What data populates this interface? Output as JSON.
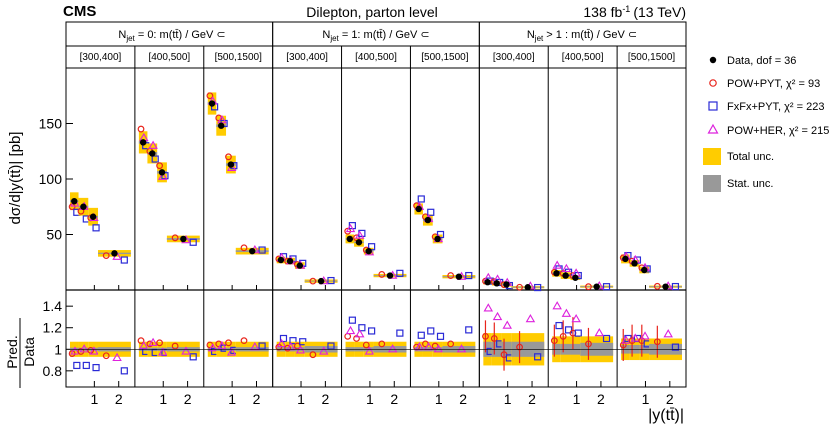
{
  "header": {
    "experiment": "CMS",
    "title": "Dilepton, parton level",
    "lumi_value": "138 fb",
    "lumi_exp": "-1",
    "lumi_energy": "(13 TeV)"
  },
  "axes": {
    "ylabel_top": "dσ/d|y(tt̄)| [pb]",
    "ylabel_bottom_num": "Pred.",
    "ylabel_bottom_den": "Data",
    "xlabel": "|y(tt̄)|"
  },
  "groups": [
    {
      "label": "N_jet = 0: m(tt̄) / GeV ⊂",
      "sub": "jet",
      "pre": "N",
      "post": " = 0: m(tt̄) / GeV ⊂"
    },
    {
      "label": "N_jet = 1: m(tt̄) / GeV ⊂",
      "sub": "jet",
      "pre": "N",
      "post": " = 1: m(tt̄) / GeV ⊂"
    },
    {
      "label": "N_jet > 1: m(tt̄) / GeV ⊂",
      "sub": "jet",
      "pre": "N",
      "post": " > 1 : m(tt̄) / GeV ⊂"
    }
  ],
  "mass_bins": [
    "[300,400]",
    "[400,500]",
    "[500,1500]"
  ],
  "legend": [
    {
      "key": "data",
      "label": "Data, dof = 36"
    },
    {
      "key": "pow",
      "label": "POW+PYT, χ² = 93"
    },
    {
      "key": "fxfx",
      "label": "FxFx+PYT, χ² = 223"
    },
    {
      "key": "her",
      "label": "POW+HER, χ² = 215"
    },
    {
      "key": "total",
      "label": "Total unc."
    },
    {
      "key": "stat",
      "label": "Stat. unc."
    }
  ],
  "colors": {
    "data": "#000000",
    "pow": "#e8241c",
    "fxfx": "#2a2ad6",
    "her": "#dd22dd",
    "total": "#ffcc00",
    "stat": "#999999"
  },
  "chart_data": {
    "type": "scatter",
    "title": "Dilepton, parton level",
    "xlabel": "|y(tt̄)|",
    "ylabel": "dσ/d|y(tt̄)| [pb]",
    "ratio_ylabel": "Pred./Data",
    "x_bin_edges": [
      0,
      0.35,
      0.75,
      1.15,
      2.5
    ],
    "x_range": [
      0,
      2.5
    ],
    "x_ticks": [
      1,
      2
    ],
    "y_range": [
      0,
      200
    ],
    "y_ticks": [
      50,
      100,
      150
    ],
    "ratio_range": [
      0.65,
      1.55
    ],
    "ratio_ticks": [
      0.8,
      1,
      1.2,
      1.4
    ],
    "panels": [
      {
        "group": 0,
        "mass": "[300,400]",
        "data": [
          80,
          75,
          66,
          33
        ],
        "total_unc": [
          8,
          8,
          8,
          3
        ],
        "stat_unc": [
          0.8,
          0.8,
          0.8,
          0.6
        ],
        "pow": [
          75,
          71,
          65,
          31
        ],
        "fxfx": [
          70,
          64,
          56,
          27
        ],
        "her": [
          78,
          75,
          65,
          30
        ],
        "ratio_pow": [
          0.96,
          0.98,
          0.99,
          0.94
        ],
        "ratio_fxfx": [
          0.85,
          0.85,
          0.83,
          0.8
        ],
        "ratio_her": [
          0.98,
          1.0,
          0.98,
          0.92
        ],
        "ratio_total": [
          0.07,
          0.07,
          0.07,
          0.07
        ],
        "ratio_stat": [
          0.015,
          0.015,
          0.015,
          0.02
        ]
      },
      {
        "group": 0,
        "mass": "[400,500]",
        "data": [
          133,
          123,
          106,
          46
        ],
        "total_unc": [
          10,
          9,
          9,
          3
        ],
        "stat_unc": [
          1.2,
          1.2,
          1.2,
          0.8
        ],
        "pow": [
          145,
          125,
          112,
          47
        ],
        "fxfx": [
          130,
          118,
          103,
          43
        ],
        "her": [
          137,
          130,
          102,
          45
        ],
        "ratio_pow": [
          1.08,
          1.05,
          1.06,
          1.03
        ],
        "ratio_fxfx": [
          0.98,
          0.97,
          0.97,
          0.93
        ],
        "ratio_her": [
          1.03,
          1.06,
          0.97,
          0.98
        ],
        "ratio_total": [
          0.07,
          0.07,
          0.07,
          0.07
        ],
        "ratio_stat": [
          0.015,
          0.015,
          0.015,
          0.02
        ]
      },
      {
        "group": 0,
        "mass": "[500,1500]",
        "data": [
          168,
          148,
          113,
          35
        ],
        "total_unc": [
          10,
          9,
          8,
          3
        ],
        "stat_unc": [
          1.2,
          1.2,
          1.2,
          0.8
        ],
        "pow": [
          175,
          155,
          120,
          38
        ],
        "fxfx": [
          165,
          150,
          112,
          36
        ],
        "her": [
          170,
          153,
          110,
          36
        ],
        "ratio_pow": [
          1.04,
          1.05,
          1.06,
          1.08
        ],
        "ratio_fxfx": [
          0.98,
          1.01,
          0.99,
          1.03
        ],
        "ratio_her": [
          1.01,
          1.03,
          0.97,
          1.02
        ],
        "ratio_total": [
          0.07,
          0.07,
          0.07,
          0.07
        ],
        "ratio_stat": [
          0.015,
          0.015,
          0.015,
          0.02
        ]
      },
      {
        "group": 1,
        "mass": "[300,400]",
        "data": [
          27,
          26,
          22,
          8
        ],
        "total_unc": [
          3,
          3,
          3,
          1.5
        ],
        "stat_unc": [
          0.5,
          0.5,
          0.5,
          0.4
        ],
        "pow": [
          28,
          26,
          23,
          8
        ],
        "fxfx": [
          30,
          28,
          24,
          8.5
        ],
        "her": [
          29,
          26,
          22,
          8
        ],
        "ratio_pow": [
          1.02,
          1.01,
          1.03,
          0.95
        ],
        "ratio_fxfx": [
          1.1,
          1.08,
          1.07,
          1.03
        ],
        "ratio_her": [
          1.05,
          1.02,
          0.99,
          0.98
        ],
        "ratio_total": [
          0.07,
          0.07,
          0.07,
          0.07
        ],
        "ratio_stat": [
          0.02,
          0.02,
          0.02,
          0.03
        ]
      },
      {
        "group": 1,
        "mass": "[400,500]",
        "data": [
          46,
          43,
          35,
          13
        ],
        "total_unc": [
          4,
          4,
          3,
          1.5
        ],
        "stat_unc": [
          0.6,
          0.6,
          0.6,
          0.4
        ],
        "pow": [
          53,
          47,
          36,
          14
        ],
        "fxfx": [
          58,
          51,
          39,
          15
        ],
        "her": [
          55,
          49,
          34,
          13
        ],
        "ratio_pow": [
          1.12,
          1.1,
          1.04,
          1.05
        ],
        "ratio_fxfx": [
          1.27,
          1.2,
          1.17,
          1.15
        ],
        "ratio_her": [
          1.17,
          1.14,
          0.98,
          1.0
        ],
        "ratio_total": [
          0.07,
          0.07,
          0.07,
          0.07
        ],
        "ratio_stat": [
          0.02,
          0.02,
          0.02,
          0.03
        ]
      },
      {
        "group": 1,
        "mass": "[500,1500]",
        "data": [
          73,
          63,
          46,
          12
        ],
        "total_unc": [
          5,
          5,
          4,
          1.5
        ],
        "stat_unc": [
          0.8,
          0.8,
          0.8,
          0.5
        ],
        "pow": [
          76,
          66,
          48,
          13
        ],
        "fxfx": [
          82,
          70,
          50,
          13
        ],
        "her": [
          75,
          64,
          46,
          12
        ],
        "ratio_pow": [
          1.02,
          1.05,
          1.03,
          1.05
        ],
        "ratio_fxfx": [
          1.13,
          1.17,
          1.12,
          1.18
        ],
        "ratio_her": [
          1.02,
          1.02,
          1.0,
          1.0
        ],
        "ratio_total": [
          0.07,
          0.07,
          0.07,
          0.07
        ],
        "ratio_stat": [
          0.02,
          0.02,
          0.02,
          0.03
        ]
      },
      {
        "group": 2,
        "mass": "[300,400]",
        "data": [
          7,
          6,
          5,
          2.5
        ],
        "total_unc": [
          2,
          2,
          2,
          1
        ],
        "stat_unc": [
          0.7,
          0.7,
          0.7,
          0.5
        ],
        "pow": [
          8,
          7.5,
          4.8,
          2.5
        ],
        "fxfx": [
          8,
          6.8,
          4,
          2.2
        ],
        "her": [
          11,
          9.5,
          6.5,
          3.3
        ],
        "ratio_pow": [
          1.12,
          1.1,
          0.95,
          1.02
        ],
        "ratio_fxfx": [
          0.98,
          1.05,
          0.92,
          0.93
        ],
        "ratio_her": [
          1.38,
          1.3,
          1.22,
          1.28
        ],
        "ratio_total": [
          0.15,
          0.15,
          0.15,
          0.15
        ],
        "ratio_stat": [
          0.07,
          0.07,
          0.07,
          0.07
        ]
      },
      {
        "group": 2,
        "mass": "[400,500]",
        "data": [
          15,
          13,
          11,
          3
        ],
        "total_unc": [
          3,
          3,
          2,
          1
        ],
        "stat_unc": [
          0.8,
          0.8,
          0.8,
          0.5
        ],
        "pow": [
          16,
          15,
          13,
          3
        ],
        "fxfx": [
          19,
          16,
          13,
          3
        ],
        "her": [
          22,
          19,
          15,
          3.5
        ],
        "ratio_pow": [
          1.08,
          1.12,
          1.15,
          1.05
        ],
        "ratio_fxfx": [
          1.22,
          1.18,
          1.15,
          1.1
        ],
        "ratio_her": [
          1.4,
          1.33,
          1.28,
          1.15
        ],
        "ratio_total": [
          0.12,
          0.12,
          0.12,
          0.12
        ],
        "ratio_stat": [
          0.05,
          0.05,
          0.05,
          0.06
        ]
      },
      {
        "group": 2,
        "mass": "[500,1500]",
        "data": [
          28,
          24,
          18,
          3
        ],
        "total_unc": [
          4,
          3,
          3,
          1
        ],
        "stat_unc": [
          0.8,
          0.8,
          0.8,
          0.5
        ],
        "pow": [
          29,
          26,
          20,
          3.3
        ],
        "fxfx": [
          31,
          27,
          19,
          3.1
        ],
        "her": [
          30,
          27,
          20,
          3.4
        ],
        "ratio_pow": [
          1.04,
          1.08,
          1.08,
          1.07
        ],
        "ratio_fxfx": [
          1.1,
          1.1,
          1.05,
          1.02
        ],
        "ratio_her": [
          1.08,
          1.1,
          1.12,
          1.14
        ],
        "ratio_total": [
          0.1,
          0.1,
          0.1,
          0.1
        ],
        "ratio_stat": [
          0.04,
          0.04,
          0.04,
          0.05
        ]
      }
    ]
  }
}
